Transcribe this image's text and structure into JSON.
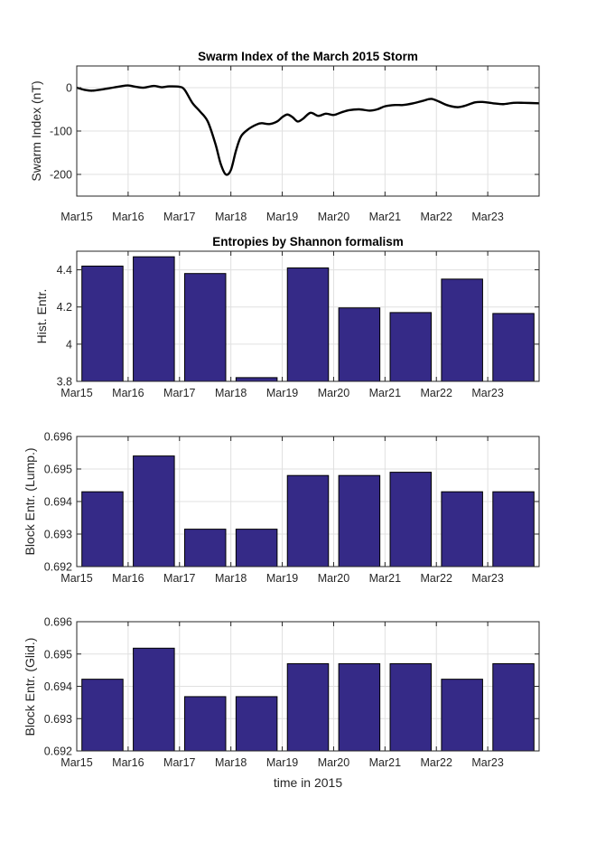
{
  "figure": {
    "xlabel": "time in 2015"
  },
  "colors": {
    "bar_fill": "#352a87",
    "bar_edge": "#000000",
    "line": "#000000",
    "grid": "#e0e0e0",
    "axis": "#262626"
  },
  "chart_data": [
    {
      "type": "line",
      "title": "Swarm Index of the March 2015 Storm",
      "xlabel": "",
      "ylabel": "Swarm Index (nT)",
      "xlim": [
        0,
        9
      ],
      "ylim": [
        -250,
        50
      ],
      "grid": true,
      "x_tick_values": [
        0,
        1,
        2,
        3,
        4,
        5,
        6,
        7,
        8
      ],
      "x_tick_labels": [
        "Mar15",
        "Mar16",
        "Mar17",
        "Mar18",
        "Mar19",
        "Mar20",
        "Mar21",
        "Mar22",
        "Mar23"
      ],
      "y_tick_values": [
        0,
        -100,
        -200
      ],
      "y_tick_labels": [
        "0",
        "-100",
        "-200"
      ],
      "series": [
        {
          "name": "Swarm Index",
          "x": [
            0,
            0.15,
            0.3,
            0.5,
            0.7,
            0.85,
            1.0,
            1.15,
            1.3,
            1.5,
            1.65,
            1.8,
            2.0,
            2.1,
            2.25,
            2.4,
            2.55,
            2.7,
            2.8,
            2.9,
            3.0,
            3.1,
            3.2,
            3.35,
            3.5,
            3.6,
            3.75,
            3.9,
            4.0,
            4.1,
            4.2,
            4.3,
            4.4,
            4.55,
            4.7,
            4.85,
            5.0,
            5.15,
            5.3,
            5.5,
            5.7,
            5.85,
            6.0,
            6.2,
            6.35,
            6.55,
            6.75,
            6.9,
            7.05,
            7.2,
            7.4,
            7.55,
            7.75,
            7.9,
            8.1,
            8.3,
            8.5,
            8.7,
            9.0
          ],
          "y": [
            0,
            -5,
            -7,
            -4,
            0,
            3,
            5,
            2,
            0,
            4,
            1,
            3,
            2,
            -5,
            -35,
            -55,
            -78,
            -130,
            -175,
            -200,
            -190,
            -145,
            -112,
            -95,
            -85,
            -82,
            -84,
            -78,
            -68,
            -62,
            -68,
            -78,
            -72,
            -58,
            -65,
            -60,
            -63,
            -57,
            -52,
            -50,
            -53,
            -50,
            -43,
            -40,
            -40,
            -36,
            -30,
            -26,
            -32,
            -40,
            -45,
            -42,
            -34,
            -33,
            -36,
            -38,
            -35,
            -35,
            -36
          ]
        }
      ]
    },
    {
      "type": "bar",
      "title": "Entropies by Shannon formalism",
      "xlabel": "",
      "ylabel": "Hist. Entr.",
      "ylim": [
        3.8,
        4.5
      ],
      "grid": true,
      "categories": [
        "Mar15",
        "Mar16",
        "Mar17",
        "Mar18",
        "Mar19",
        "Mar20",
        "Mar21",
        "Mar22",
        "Mar23"
      ],
      "values": [
        4.42,
        4.47,
        4.38,
        3.82,
        4.41,
        4.195,
        4.17,
        4.35,
        4.165
      ],
      "y_tick_values": [
        3.8,
        4,
        4.2,
        4.4
      ],
      "y_tick_labels": [
        "3.8",
        "4",
        "4.2",
        "4.4"
      ]
    },
    {
      "type": "bar",
      "title": "",
      "xlabel": "",
      "ylabel": "Block Entr. (Lump.)",
      "ylim": [
        0.692,
        0.696
      ],
      "grid": true,
      "categories": [
        "Mar15",
        "Mar16",
        "Mar17",
        "Mar18",
        "Mar19",
        "Mar20",
        "Mar21",
        "Mar22",
        "Mar23"
      ],
      "values": [
        0.6943,
        0.6954,
        0.69315,
        0.69315,
        0.6948,
        0.6948,
        0.6949,
        0.6943,
        0.6943
      ],
      "y_tick_values": [
        0.692,
        0.693,
        0.694,
        0.695,
        0.696
      ],
      "y_tick_labels": [
        "0.692",
        "0.693",
        "0.694",
        "0.695",
        "0.696"
      ]
    },
    {
      "type": "bar",
      "title": "",
      "xlabel": "time in 2015",
      "ylabel": "Block Entr. (Glid.)",
      "ylim": [
        0.692,
        0.696
      ],
      "grid": true,
      "categories": [
        "Mar15",
        "Mar16",
        "Mar17",
        "Mar18",
        "Mar19",
        "Mar20",
        "Mar21",
        "Mar22",
        "Mar23"
      ],
      "values": [
        0.69422,
        0.69518,
        0.69368,
        0.69368,
        0.6947,
        0.6947,
        0.6947,
        0.69422,
        0.6947
      ],
      "y_tick_values": [
        0.692,
        0.693,
        0.694,
        0.695,
        0.696
      ],
      "y_tick_labels": [
        "0.692",
        "0.693",
        "0.694",
        "0.695",
        "0.696"
      ]
    }
  ]
}
